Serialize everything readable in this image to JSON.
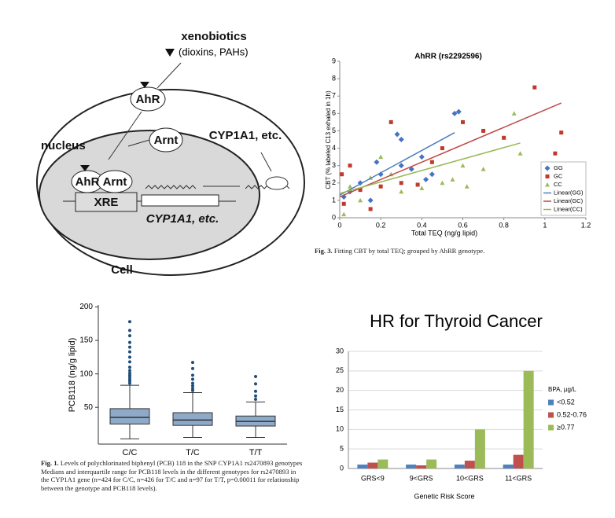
{
  "diagram": {
    "xenobiotics": "xenobiotics",
    "ligands": "(dioxins, PAHs)",
    "ahr": "AhR",
    "nucleus": "nucleus",
    "arnt": "Arnt",
    "complex_ahr": "AhR",
    "complex_arnt": "Arnt",
    "xre": "XRE",
    "gene": "CYP1A1, etc.",
    "product": "CYP1A1, etc.",
    "cell": "Cell"
  },
  "chart_data": [
    {
      "type": "scatter",
      "title": "AhRR (rs2292596)",
      "x_label": "Total TEQ (ng/g lipid)",
      "y_label": "CBT (% labeled C13 exhaled in 1h)",
      "xlim": [
        0,
        1.2
      ],
      "xticks": [
        0,
        0.2,
        0.4,
        0.6,
        0.8,
        1,
        1.2
      ],
      "ylim": [
        0,
        9
      ],
      "yticks": [
        0,
        1,
        2,
        3,
        4,
        5,
        6,
        7,
        8,
        9
      ],
      "caption_label": "Fig. 3.",
      "caption": "Fitting CBT by total TEQ; grouped by AhRR genotype.",
      "series": [
        {
          "name": "GG",
          "color": "#4472c4",
          "marker": "diamond",
          "x": [
            0.28,
            0.3,
            0.58,
            0.56,
            0.2,
            0.15,
            0.1,
            0.05,
            0.3,
            0.35,
            0.4,
            0.45,
            0.02,
            0.18,
            0.42
          ],
          "values": [
            4.8,
            4.5,
            6.1,
            6.0,
            2.5,
            1.0,
            2.0,
            1.5,
            3.0,
            2.8,
            3.5,
            2.5,
            1.2,
            3.2,
            2.2
          ]
        },
        {
          "name": "GC",
          "color": "#c0392b",
          "marker": "square",
          "x": [
            0.95,
            1.08,
            1.05,
            0.6,
            0.25,
            0.5,
            0.7,
            0.02,
            0.01,
            0.1,
            0.2,
            0.15,
            0.3,
            0.45,
            0.8,
            0.05,
            0.38
          ],
          "values": [
            7.5,
            4.9,
            3.7,
            5.5,
            5.5,
            4.0,
            5.0,
            0.8,
            2.5,
            1.6,
            1.8,
            0.5,
            2.0,
            3.2,
            4.6,
            3.0,
            1.9
          ]
        },
        {
          "name": "CC",
          "color": "#9bbb59",
          "marker": "triangle",
          "x": [
            0.85,
            0.88,
            0.6,
            0.5,
            0.2,
            0.3,
            0.1,
            0.02,
            0.25,
            0.4,
            0.55,
            0.7,
            0.15,
            0.62,
            0.05
          ],
          "values": [
            6.0,
            3.7,
            3.0,
            2.0,
            3.5,
            1.5,
            1.0,
            0.2,
            2.5,
            1.7,
            2.2,
            2.8,
            2.3,
            1.8,
            1.8
          ]
        },
        {
          "name": "Linear(GG)",
          "color": "#4a7ebb",
          "marker": "line",
          "x": [
            0,
            0.56
          ],
          "values": [
            1.3,
            4.9
          ]
        },
        {
          "name": "Linear(GC)",
          "color": "#be4b48",
          "marker": "line",
          "x": [
            0,
            1.08
          ],
          "values": [
            1.2,
            6.6
          ]
        },
        {
          "name": "Linear(CC)",
          "color": "#98b954",
          "marker": "line",
          "x": [
            0,
            0.88
          ],
          "values": [
            1.4,
            4.3
          ]
        }
      ]
    },
    {
      "type": "box",
      "y_label": "PCB118 (ng/g lipid)",
      "categories": [
        "C/C",
        "T/C",
        "T/T"
      ],
      "ylim": [
        -5,
        203
      ],
      "yticks": [
        50,
        100,
        150,
        200
      ],
      "color": "#8eaac8",
      "caption_label": "Fig. 1.",
      "caption": "Levels of polychlorinated biphenyl (PCB) 118 in the SNP CYP1A1 rs2470893 genotypes Medians and interquartile range for PCB118 levels in the different genotypes for rs2470893 in the CYP1A1 gene (n=424 for C/C, n=426 for T/C and n=97 for T/T, p=0.00011 for relationship between the genotype and PCB118 levels).",
      "boxes": [
        {
          "min": 3,
          "q1": 25,
          "median": 35,
          "q3": 48,
          "max": 83,
          "outliers": [
            86,
            89,
            92,
            95,
            98,
            101,
            105,
            110,
            118,
            125,
            133,
            140,
            147,
            157,
            165,
            178
          ]
        },
        {
          "min": 5,
          "q1": 23,
          "median": 31,
          "q3": 42,
          "max": 72,
          "outliers": [
            75,
            78,
            82,
            86,
            92,
            98,
            108,
            117
          ]
        },
        {
          "min": 5,
          "q1": 22,
          "median": 29,
          "q3": 37,
          "max": 58,
          "outliers": [
            62,
            67,
            74,
            85,
            96
          ]
        }
      ]
    },
    {
      "type": "bar",
      "title": "HR for Thyroid Cancer",
      "x_label": "Genetic Risk Score",
      "legend_title": "BPA, µg/L",
      "grid": true,
      "categories": [
        "GRS<9",
        "9<GRS",
        "10<GRS",
        "11<GRS"
      ],
      "ylim": [
        0,
        30
      ],
      "yticks": [
        0,
        5,
        10,
        15,
        20,
        25,
        30
      ],
      "series": [
        {
          "name": "<0.52",
          "color": "#4f81bd",
          "values": [
            1,
            1,
            1,
            1
          ]
        },
        {
          "name": "0.52-0.76",
          "color": "#c0504d",
          "values": [
            1.5,
            0.8,
            2,
            3.5
          ]
        },
        {
          "name": "≥0.77",
          "color": "#9bbb59",
          "values": [
            2.3,
            2.3,
            10,
            25
          ]
        }
      ]
    }
  ]
}
